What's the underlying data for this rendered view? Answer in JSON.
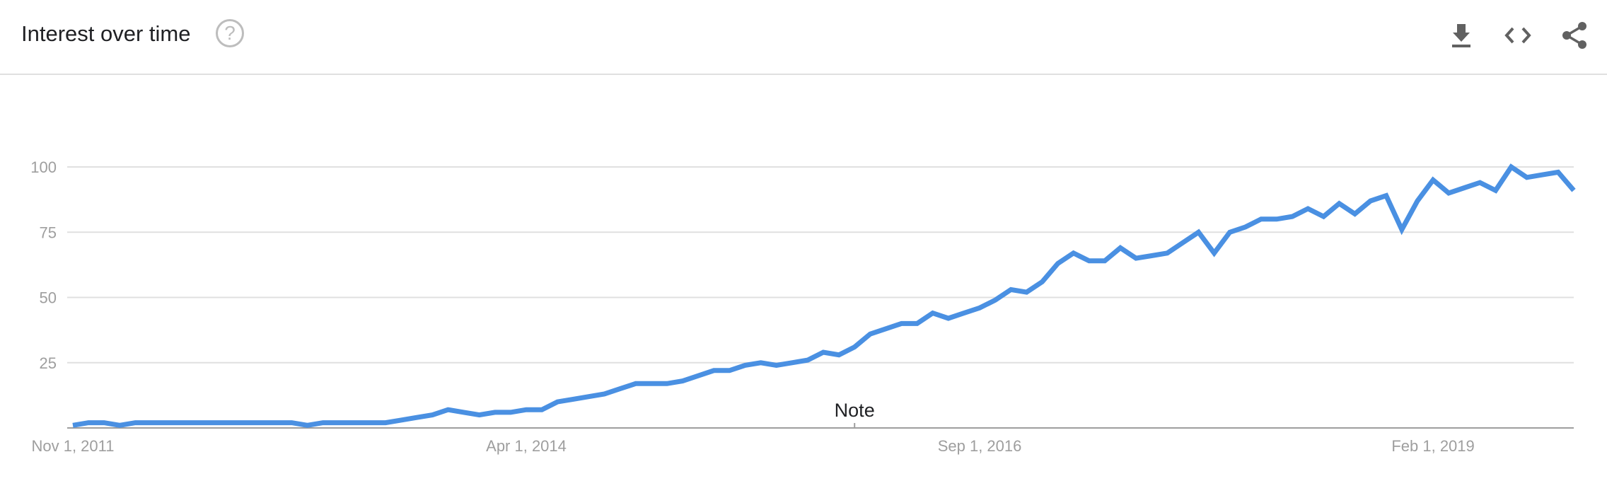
{
  "header": {
    "title": "Interest over time",
    "help_glyph": "?",
    "icons": [
      "help-icon",
      "download-icon",
      "embed-code-icon",
      "share-icon"
    ]
  },
  "colors": {
    "series": "#4a90e2",
    "grid": "#e0e0e0",
    "axis": "#9e9e9e",
    "text": "#202124"
  },
  "chart_data": {
    "type": "line",
    "title": "Interest over time",
    "ylim": [
      0,
      100
    ],
    "y_ticks": [
      "25",
      "50",
      "75",
      "100"
    ],
    "y_tick_values": [
      25,
      50,
      75,
      100
    ],
    "x_tick_labels": [
      "Nov 1, 2011",
      "Apr 1, 2014",
      "Sep 1, 2016",
      "Feb 1, 2019"
    ],
    "x_tick_indices": [
      0,
      29,
      58,
      87
    ],
    "grid": true,
    "annotations": [
      {
        "text": "Note",
        "index": 50
      }
    ],
    "series": [
      {
        "values": [
          1,
          2,
          2,
          1,
          2,
          2,
          2,
          2,
          2,
          2,
          2,
          2,
          2,
          2,
          2,
          1,
          2,
          2,
          2,
          2,
          2,
          3,
          4,
          5,
          7,
          6,
          5,
          6,
          6,
          7,
          7,
          10,
          11,
          12,
          13,
          15,
          17,
          17,
          17,
          18,
          20,
          22,
          22,
          24,
          25,
          24,
          25,
          26,
          29,
          28,
          31,
          36,
          38,
          40,
          40,
          44,
          42,
          44,
          46,
          49,
          53,
          52,
          56,
          63,
          67,
          64,
          64,
          69,
          65,
          66,
          67,
          71,
          75,
          67,
          75,
          77,
          80,
          80,
          81,
          84,
          81,
          86,
          82,
          87,
          89,
          76,
          87,
          95,
          90,
          92,
          94,
          91,
          100,
          96,
          97,
          98,
          91
        ]
      }
    ]
  }
}
